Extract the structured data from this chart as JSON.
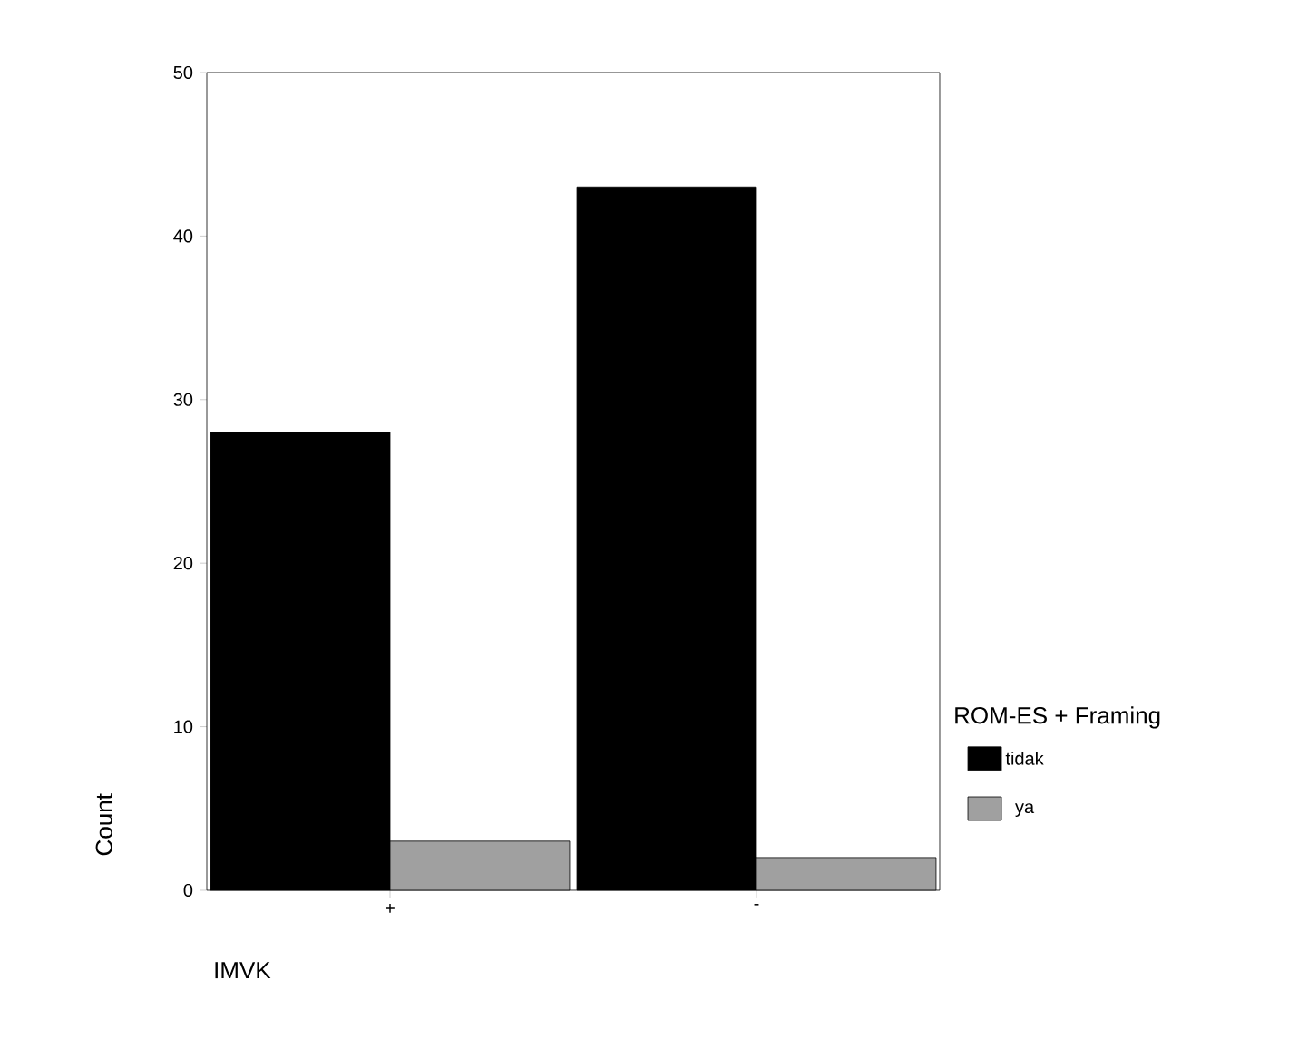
{
  "chart_data": {
    "type": "bar",
    "categories": [
      "+",
      "-"
    ],
    "series": [
      {
        "name": "tidak",
        "color": "#000000",
        "values": [
          28,
          43
        ]
      },
      {
        "name": "ya",
        "color": "#a0a0a0",
        "values": [
          3,
          2
        ]
      }
    ],
    "xlabel": "IMVK",
    "ylabel": "Count",
    "legend_title": "ROM-ES + Framing",
    "legend": "right",
    "ylim": [
      0,
      50
    ],
    "yticks": [
      0,
      10,
      20,
      30,
      40,
      50
    ]
  }
}
